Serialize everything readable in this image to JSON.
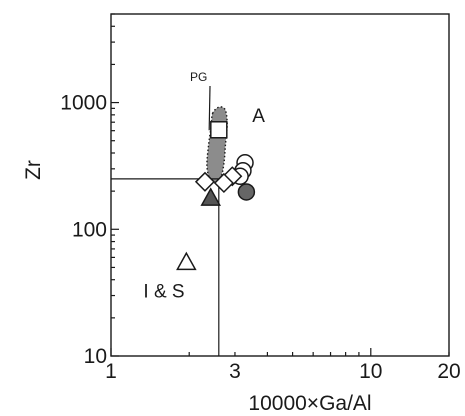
{
  "chart_data": {
    "type": "scatter",
    "title": "",
    "xlabel": "10000×Ga/Al",
    "ylabel": "Zr",
    "xscale": "log",
    "yscale": "log",
    "xlim": [
      1,
      20
    ],
    "ylim": [
      10,
      5000
    ],
    "xticks": [
      {
        "value": 1,
        "label": "1"
      },
      {
        "value": 3,
        "label": "3"
      },
      {
        "value": 10,
        "label": "10"
      },
      {
        "value": 20,
        "label": "20"
      }
    ],
    "yticks": [
      {
        "value": 10,
        "label": "10"
      },
      {
        "value": 100,
        "label": "100"
      },
      {
        "value": 1000,
        "label": "1000"
      }
    ],
    "grid": false,
    "legend": "none",
    "boundaries": {
      "horizontal_at_zr": 250,
      "vertical_at_ga_al": 2.6
    },
    "regions": [
      {
        "label": "A",
        "x": 3.7,
        "y": 700
      },
      {
        "label": "I & S",
        "x": 1.6,
        "y": 29
      }
    ],
    "field": {
      "label": "PG",
      "fill": "#8c8c8c",
      "outline": [
        [
          2.46,
          820
        ],
        [
          2.6,
          920
        ],
        [
          2.75,
          880
        ],
        [
          2.8,
          680
        ],
        [
          2.76,
          470
        ],
        [
          2.72,
          330
        ],
        [
          2.64,
          250
        ],
        [
          2.52,
          230
        ],
        [
          2.4,
          250
        ],
        [
          2.34,
          320
        ],
        [
          2.38,
          480
        ],
        [
          2.43,
          650
        ]
      ]
    },
    "points": [
      {
        "marker": "square-open",
        "x": 2.6,
        "y": 610
      },
      {
        "marker": "circle-open",
        "x": 3.28,
        "y": 335
      },
      {
        "marker": "circle-open",
        "x": 3.22,
        "y": 290
      },
      {
        "marker": "circle-open",
        "x": 3.14,
        "y": 262
      },
      {
        "marker": "diamond-open",
        "x": 2.93,
        "y": 262
      },
      {
        "marker": "diamond-open",
        "x": 2.3,
        "y": 237
      },
      {
        "marker": "diamond-open",
        "x": 2.72,
        "y": 232
      },
      {
        "marker": "circle-filled",
        "x": 3.32,
        "y": 197
      },
      {
        "marker": "triangle-filled",
        "x": 2.42,
        "y": 177
      },
      {
        "marker": "triangle-open",
        "x": 1.95,
        "y": 55
      }
    ]
  }
}
